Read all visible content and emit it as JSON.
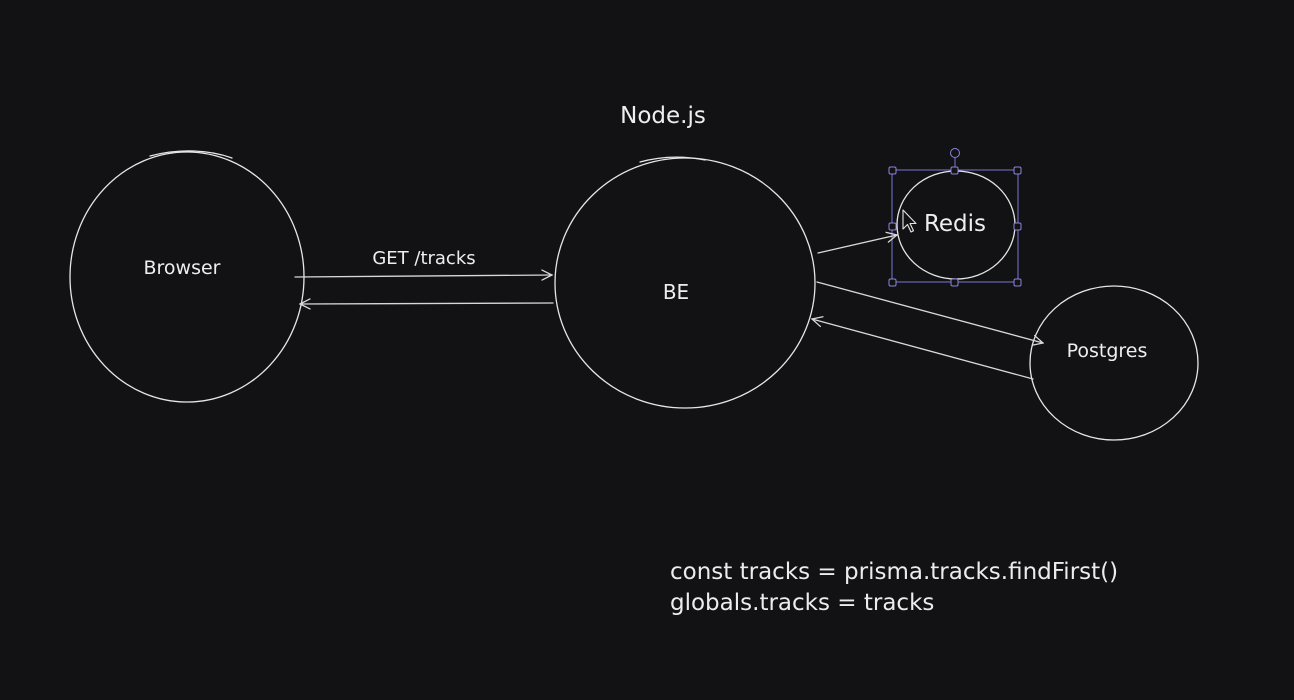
{
  "diagram": {
    "nodes": {
      "browser": {
        "label": "Browser"
      },
      "be": {
        "label": "BE",
        "caption": "Node.js"
      },
      "redis": {
        "label": "Redis",
        "selected": true
      },
      "postgres": {
        "label": "Postgres"
      }
    },
    "edges": [
      {
        "from": "Browser",
        "to": "BE",
        "label": "GET /tracks"
      },
      {
        "from": "BE",
        "to": "Browser",
        "label": ""
      },
      {
        "from": "BE",
        "to": "Redis",
        "label": ""
      },
      {
        "from": "BE",
        "to": "Postgres",
        "label": ""
      },
      {
        "from": "Postgres",
        "to": "BE",
        "label": ""
      }
    ]
  },
  "code_note": {
    "line1": "const tracks = prisma.tracks.findFirst()",
    "line2": "globals.tracks = tracks"
  },
  "colors": {
    "background": "#121214",
    "stroke": "#e6e6e6",
    "selection": "#7b74d6"
  }
}
